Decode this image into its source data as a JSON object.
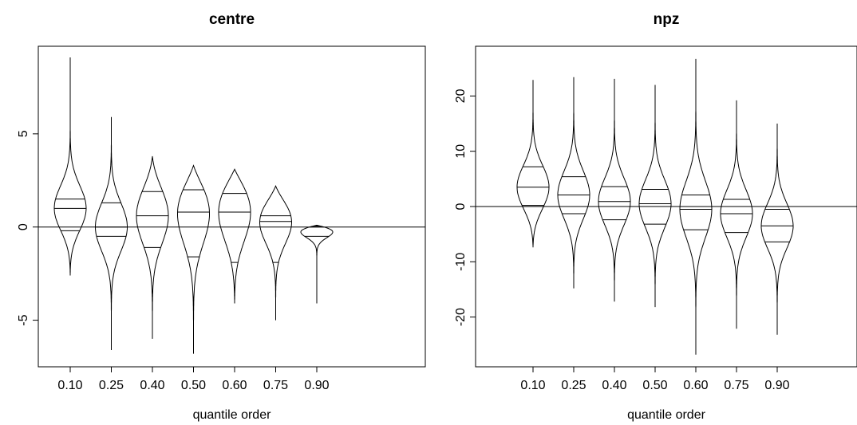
{
  "chart_data": [
    {
      "type": "violin",
      "title": "centre",
      "xlabel": "quantile order",
      "ylabel": "",
      "categories": [
        "0.10",
        "0.25",
        "0.40",
        "0.50",
        "0.60",
        "0.75",
        "0.90"
      ],
      "yticks": [
        "-5",
        "0",
        "5"
      ],
      "ylim": [
        -7.5,
        9.7
      ],
      "reference_line": 0,
      "violins": [
        {
          "category": "0.10",
          "min": -2.6,
          "q1": -0.2,
          "median": 1.0,
          "q3": 1.5,
          "max": 9.1
        },
        {
          "category": "0.25",
          "min": -6.6,
          "q1": -0.5,
          "median": 0.0,
          "q3": 1.3,
          "max": 5.9
        },
        {
          "category": "0.40",
          "min": -6.0,
          "q1": -1.1,
          "median": 0.6,
          "q3": 1.9,
          "max": 3.8
        },
        {
          "category": "0.50",
          "min": -6.8,
          "q1": -1.6,
          "median": 0.8,
          "q3": 2.0,
          "max": 3.3
        },
        {
          "category": "0.60",
          "min": -4.1,
          "q1": -1.9,
          "median": 0.8,
          "q3": 1.8,
          "max": 3.1
        },
        {
          "category": "0.75",
          "min": -5.0,
          "q1": -1.9,
          "median": 0.3,
          "q3": 0.6,
          "max": 2.2
        },
        {
          "category": "0.90",
          "min": -4.1,
          "q1": -0.5,
          "median": 0.0,
          "q3": 0.05,
          "max": 0.1
        }
      ]
    },
    {
      "type": "violin",
      "title": "npz",
      "xlabel": "quantile order",
      "ylabel": "",
      "categories": [
        "0.10",
        "0.25",
        "0.40",
        "0.50",
        "0.60",
        "0.75",
        "0.90"
      ],
      "yticks": [
        "-20",
        "-10",
        "0",
        "10",
        "20"
      ],
      "ylim": [
        -29,
        29
      ],
      "reference_line": 0,
      "violins": [
        {
          "category": "0.10",
          "min": -7.4,
          "q1": 0.2,
          "median": 3.5,
          "q3": 7.2,
          "max": 22.9
        },
        {
          "category": "0.25",
          "min": -14.8,
          "q1": -1.3,
          "median": 2.1,
          "q3": 5.4,
          "max": 23.4
        },
        {
          "category": "0.40",
          "min": -17.2,
          "q1": -2.4,
          "median": 0.9,
          "q3": 3.6,
          "max": 23.1
        },
        {
          "category": "0.50",
          "min": -18.2,
          "q1": -3.2,
          "median": 0.5,
          "q3": 3.1,
          "max": 22.0
        },
        {
          "category": "0.60",
          "min": -26.8,
          "q1": -4.2,
          "median": -0.5,
          "q3": 2.1,
          "max": 26.7
        },
        {
          "category": "0.75",
          "min": -22.1,
          "q1": -4.7,
          "median": -1.3,
          "q3": 1.3,
          "max": 19.2
        },
        {
          "category": "0.90",
          "min": -23.2,
          "q1": -6.4,
          "median": -3.5,
          "q3": -0.5,
          "max": 15.0
        }
      ]
    }
  ]
}
